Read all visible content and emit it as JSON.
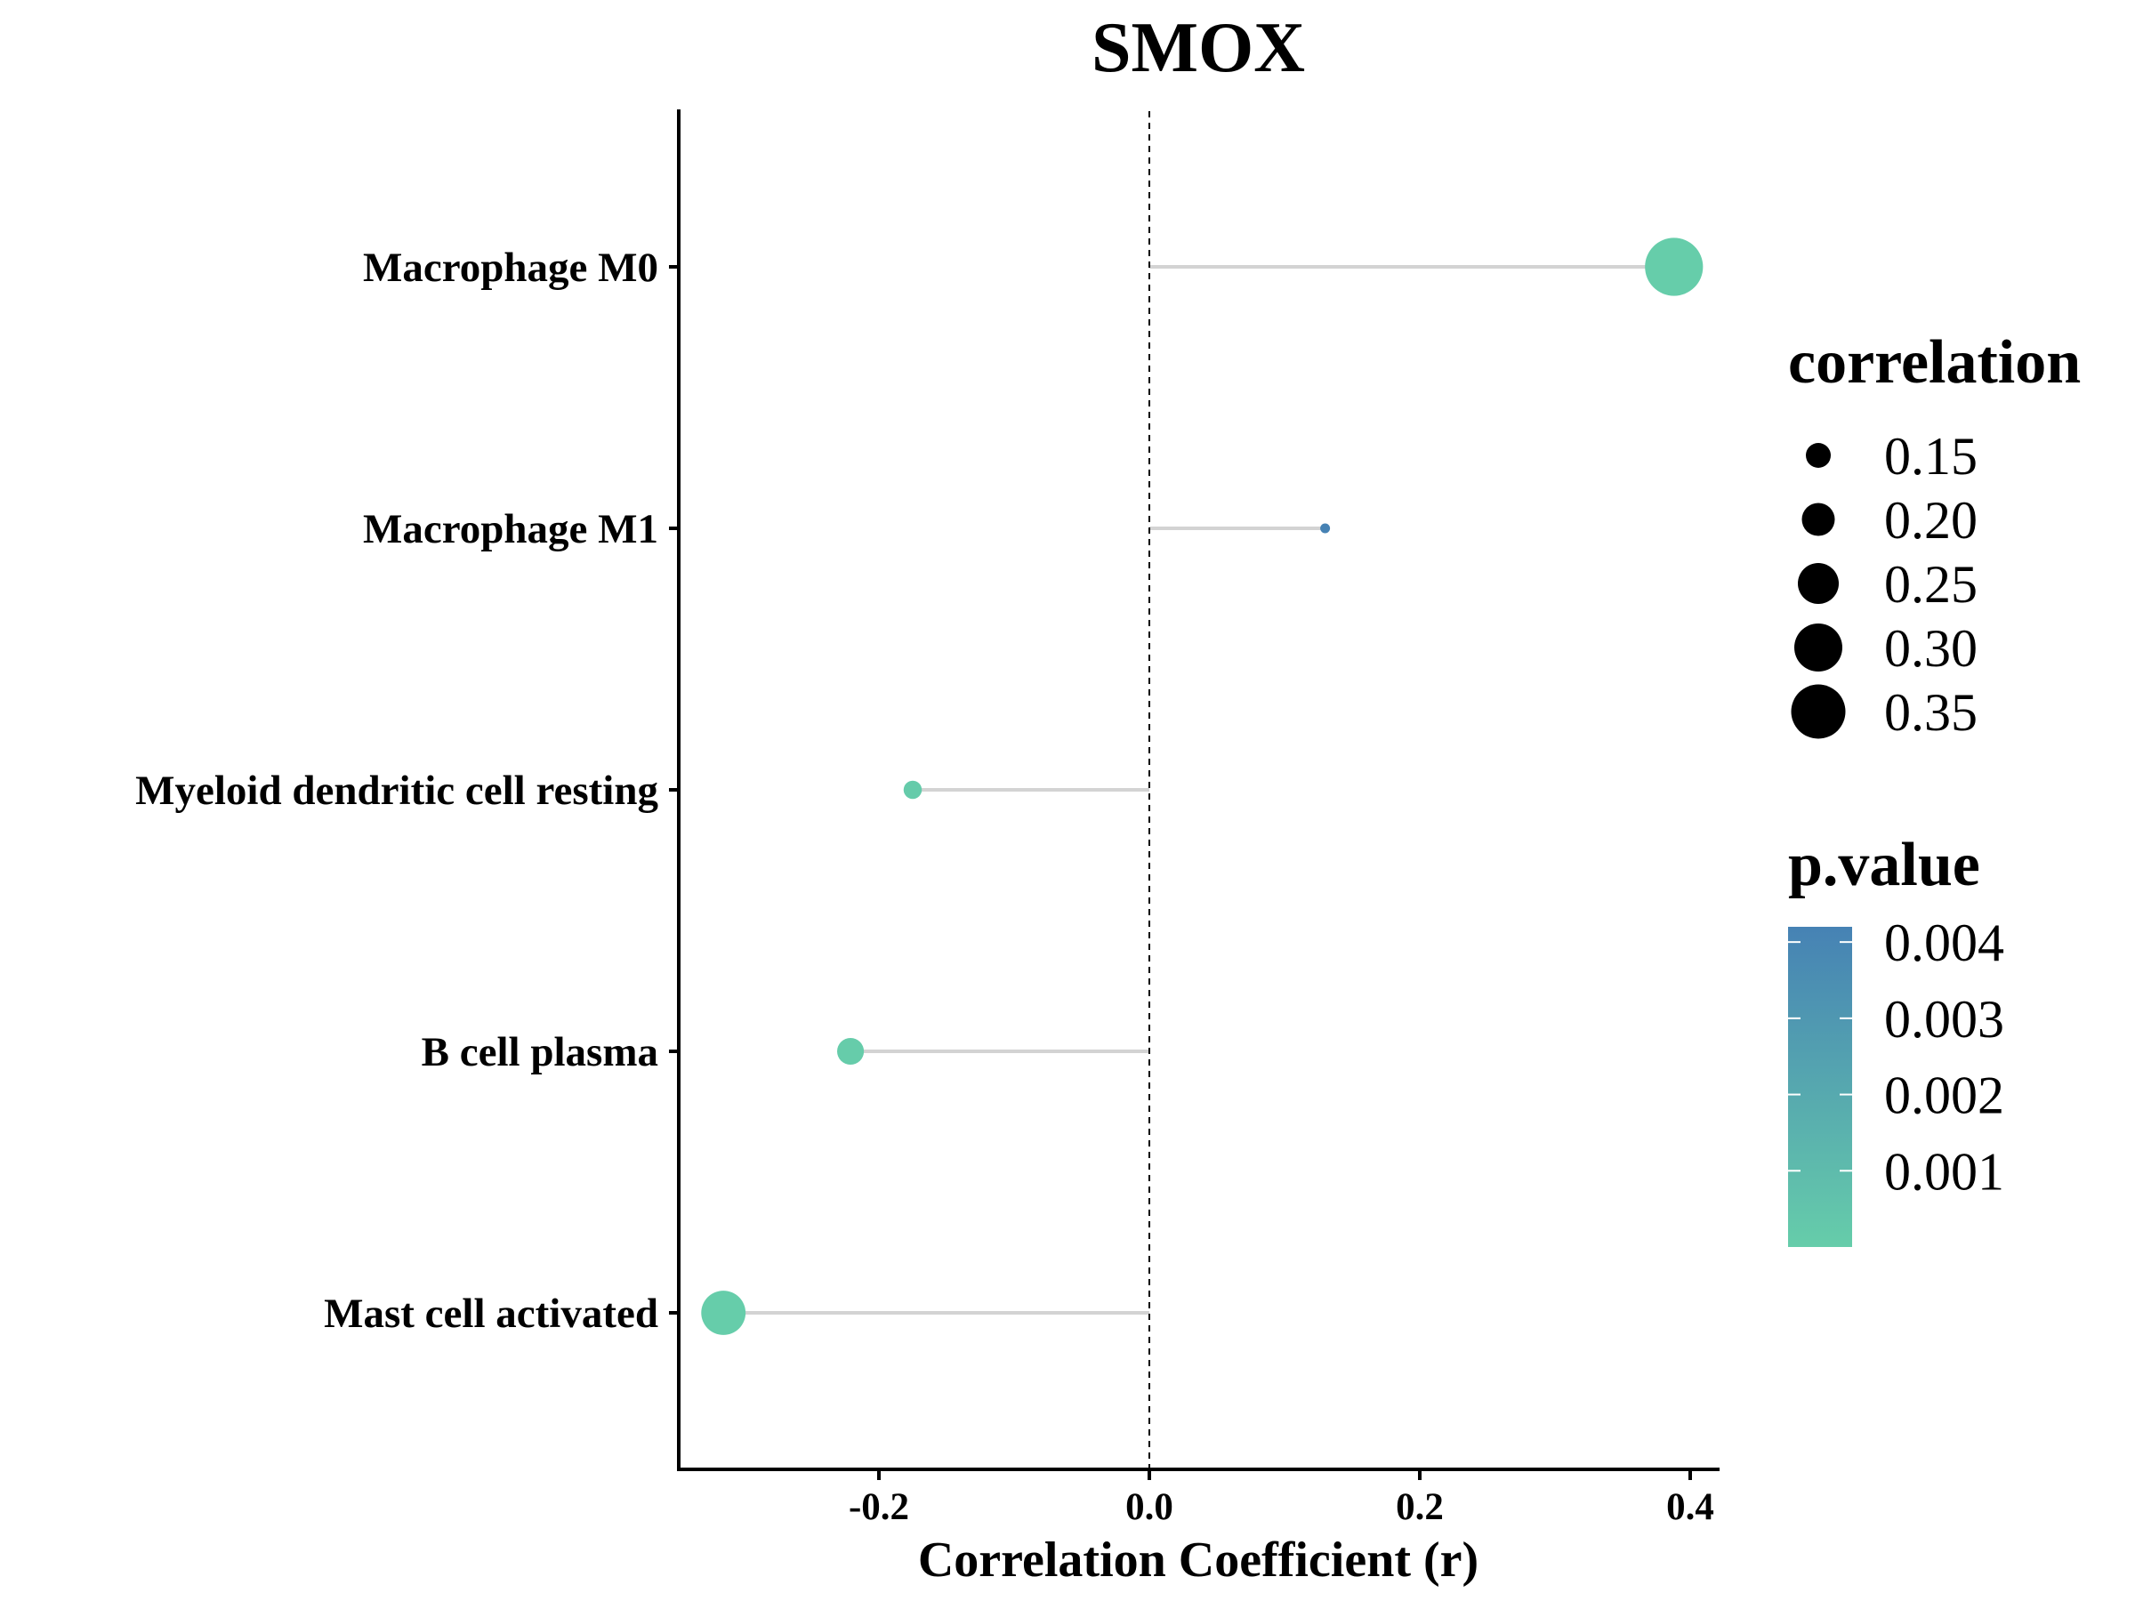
{
  "chart_data": {
    "type": "lollipop",
    "title": "SMOX",
    "xlabel": "Correlation Coefficient (r)",
    "ylabel": "",
    "xlim": [
      -0.35,
      0.42
    ],
    "xticks": [
      -0.2,
      0.0,
      0.2,
      0.4
    ],
    "xtick_labels": [
      "-0.2",
      "0.0",
      "0.2",
      "0.4"
    ],
    "reference_line": 0,
    "grid": false,
    "categories": [
      "Macrophage M0",
      "Macrophage M1",
      "Myeloid dendritic cell resting",
      "B cell plasma",
      "Mast cell activated"
    ],
    "points": [
      {
        "label": "Macrophage M0",
        "r": 0.388,
        "correlation": 0.388,
        "p_value": 2e-05
      },
      {
        "label": "Macrophage M1",
        "r": 0.13,
        "correlation": 0.13,
        "p_value": 0.0042
      },
      {
        "label": "Myeloid dendritic cell resting",
        "r": -0.175,
        "correlation": 0.175,
        "p_value": 0.0001
      },
      {
        "label": "B cell plasma",
        "r": -0.221,
        "correlation": 0.221,
        "p_value": 5e-05
      },
      {
        "label": "Mast cell activated",
        "r": -0.315,
        "correlation": 0.315,
        "p_value": 1e-05
      }
    ],
    "size_legend": {
      "title": "correlation",
      "values": [
        0.15,
        0.2,
        0.25,
        0.3,
        0.35
      ],
      "labels": [
        "0.15",
        "0.20",
        "0.25",
        "0.30",
        "0.35"
      ]
    },
    "color_legend": {
      "title": "p.value",
      "range": [
        0.0,
        0.0042
      ],
      "ticks": [
        0.004,
        0.003,
        0.002,
        0.001
      ],
      "tick_labels": [
        "0.004",
        "0.003",
        "0.002",
        "0.001"
      ],
      "color_low": "#66cdaa",
      "color_high": "#4682b4"
    },
    "segment_color": "#d3d3d3",
    "legend_position": "right"
  }
}
